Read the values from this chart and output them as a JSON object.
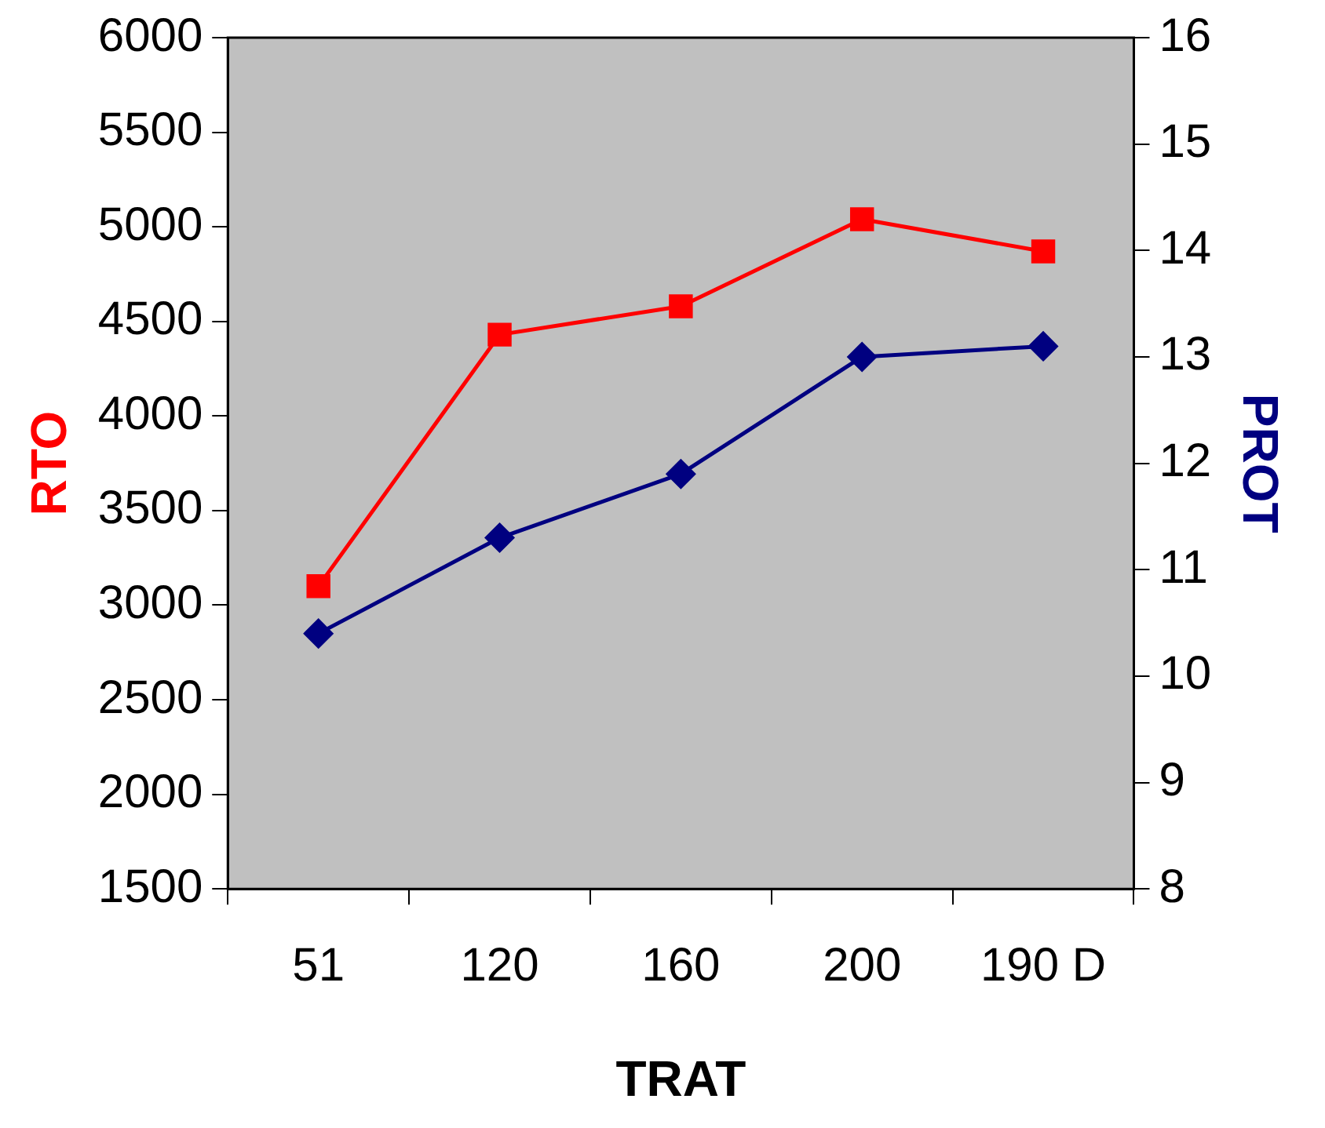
{
  "chart_data": {
    "type": "line",
    "xlabel": "TRAT",
    "ylabel": "RTO",
    "y2label": "PROT",
    "categories": [
      "51",
      "120",
      "160",
      "200",
      "190 D"
    ],
    "series": [
      {
        "color": "#ff0000",
        "marker": "square",
        "values": [
          3100,
          4430,
          4580,
          5040,
          4870
        ]
      },
      {
        "color": "#000080",
        "marker": "diamond",
        "axis": "y2",
        "values": [
          10.4,
          11.3,
          11.9,
          13.0,
          13.1
        ]
      }
    ],
    "ylim": [
      1500,
      6000
    ],
    "yticks": [
      1500,
      2000,
      2500,
      3000,
      3500,
      4000,
      4500,
      5000,
      5500,
      6000
    ],
    "y2lim": [
      8,
      16
    ],
    "y2ticks": [
      8,
      9,
      10,
      11,
      12,
      13,
      14,
      15,
      16
    ],
    "grid": false,
    "legend": false
  }
}
